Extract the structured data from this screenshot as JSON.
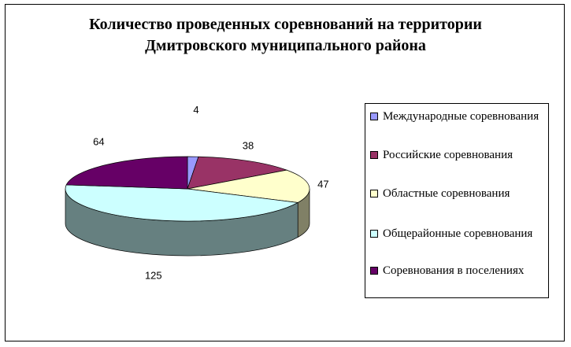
{
  "chart_data": {
    "type": "pie",
    "title_lines": [
      "Количество проведенных соревнований на территории",
      "Дмитровского муниципального района"
    ],
    "categories": [
      "Международные соревнования",
      "Российские соревнования",
      "Областные соревнования",
      "Общерайонные соревнования",
      "Соревнования в поселениях"
    ],
    "values": [
      4,
      38,
      47,
      125,
      64
    ],
    "data_labels": [
      "4",
      "38",
      "47",
      "125",
      "64"
    ],
    "colors": [
      "#9999ff",
      "#993366",
      "#ffffcc",
      "#ccffff",
      "#660066"
    ],
    "legend_position": "right",
    "style": "3d"
  },
  "legend": {
    "items": [
      {
        "label": "Международные соревнования",
        "color": "#9999ff"
      },
      {
        "label": "Российские соревнования",
        "color": "#993366"
      },
      {
        "label": "Областные соревнования",
        "color": "#ffffcc"
      },
      {
        "label": "Общерайонные соревнования",
        "color": "#ccffff"
      },
      {
        "label": "Соревнования в поселениях",
        "color": "#660066"
      }
    ]
  }
}
